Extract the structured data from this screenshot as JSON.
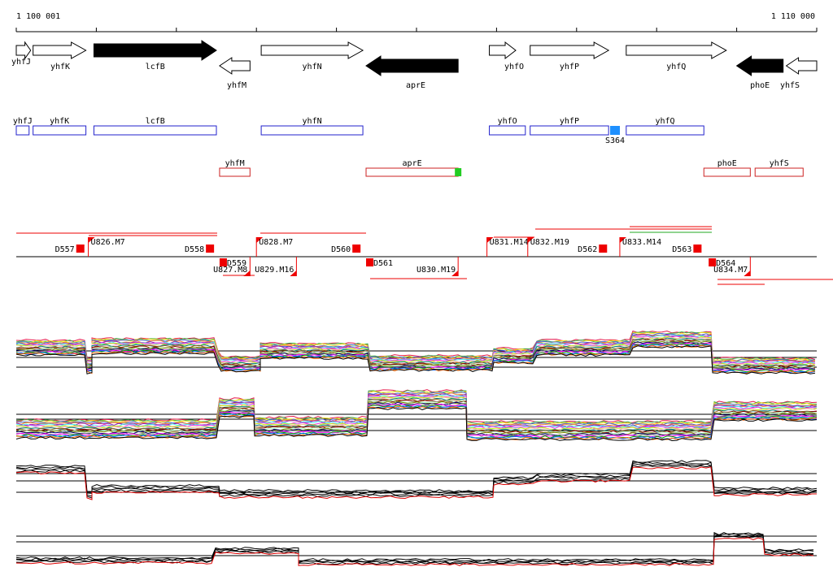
{
  "ruler": {
    "start_label": "1 100 001",
    "end_label": "1 110 000"
  },
  "colors": {
    "forward_outline": "#2222cc",
    "reverse_outline": "#cc2222",
    "sigma_marker": "#1e90ff",
    "term_marker": "#22cc22",
    "segment_marker": "#ee0000",
    "flag": "#ee0000",
    "black": "#000000"
  },
  "genes": [
    {
      "label": "yhfJ",
      "strand": "+",
      "filled": false,
      "from": 1100001,
      "to": 1100181
    },
    {
      "label": "yhfK",
      "strand": "+",
      "filled": false,
      "from": 1100211,
      "to": 1100871
    },
    {
      "label": "lcfB",
      "strand": "+",
      "filled": true,
      "from": 1100971,
      "to": 1102501
    },
    {
      "label": "yhfM",
      "strand": "-",
      "filled": false,
      "from": 1102541,
      "to": 1102921
    },
    {
      "label": "yhfN",
      "strand": "+",
      "filled": false,
      "from": 1103061,
      "to": 1104331
    },
    {
      "label": "aprE",
      "strand": "-",
      "filled": true,
      "from": 1104371,
      "to": 1105521
    },
    {
      "label": "yhfO",
      "strand": "+",
      "filled": false,
      "from": 1105911,
      "to": 1106241
    },
    {
      "label": "yhfP",
      "strand": "+",
      "filled": false,
      "from": 1106421,
      "to": 1107401
    },
    {
      "label": "yhfQ",
      "strand": "+",
      "filled": false,
      "from": 1107621,
      "to": 1108871
    },
    {
      "label": "phoE",
      "strand": "-",
      "filled": true,
      "from": 1109001,
      "to": 1109581
    },
    {
      "label": "yhfS",
      "strand": "-",
      "filled": false,
      "from": 1109621,
      "to": 1110001
    }
  ],
  "forward_boxes": [
    {
      "label": "yhfJ",
      "from": 1100001,
      "to": 1100161
    },
    {
      "label": "yhfK",
      "from": 1100211,
      "to": 1100871
    },
    {
      "label": "lcfB",
      "from": 1100971,
      "to": 1102501
    },
    {
      "label": "yhfN",
      "from": 1103061,
      "to": 1104331
    },
    {
      "label": "yhfO",
      "from": 1105911,
      "to": 1106361
    },
    {
      "label": "yhfP",
      "from": 1106421,
      "to": 1107401
    },
    {
      "label": "yhfQ",
      "from": 1107621,
      "to": 1108591
    }
  ],
  "sigma_site": {
    "label": "S364",
    "at": 1107481
  },
  "reverse_boxes": [
    {
      "label": "yhfM",
      "from": 1102541,
      "to": 1102921
    },
    {
      "label": "aprE",
      "from": 1104371,
      "to": 1105521
    },
    {
      "label": "phoE",
      "from": 1108591,
      "to": 1109171
    },
    {
      "label": "yhfS",
      "from": 1109231,
      "to": 1109831
    }
  ],
  "terminator": {
    "at": 1105521
  },
  "segments_up": [
    {
      "label": "D557",
      "at": 1100801
    },
    {
      "label": "D558",
      "at": 1102421
    },
    {
      "label": "D560",
      "at": 1104251
    },
    {
      "label": "D562",
      "at": 1107331
    },
    {
      "label": "D563",
      "at": 1108511
    }
  ],
  "segments_down": [
    {
      "label": "D559",
      "at": 1102541
    },
    {
      "label": "D561",
      "at": 1104371
    },
    {
      "label": "D564",
      "at": 1108651
    }
  ],
  "flags_up": [
    {
      "label": "U826.M7",
      "at": 1100901
    },
    {
      "label": "U828.M7",
      "at": 1103001
    },
    {
      "label": "U831.M14",
      "at": 1105881
    },
    {
      "label": "U832.M19",
      "at": 1106391
    },
    {
      "label": "U833.M14",
      "at": 1107541
    }
  ],
  "flags_down": [
    {
      "label": "U827.M8",
      "at": 1102921
    },
    {
      "label": "U829.M16",
      "at": 1103501
    },
    {
      "label": "U830.M19",
      "at": 1105521
    },
    {
      "label": "U834.M7",
      "at": 1109171
    }
  ],
  "panels": [
    {
      "name": "heat-condition-panel-1",
      "ref_lines": 3
    },
    {
      "name": "heat-condition-panel-2",
      "ref_lines": 3
    },
    {
      "name": "tiling-panel-3",
      "ref_lines": 3
    },
    {
      "name": "tiling-panel-4",
      "ref_lines": 3
    }
  ]
}
